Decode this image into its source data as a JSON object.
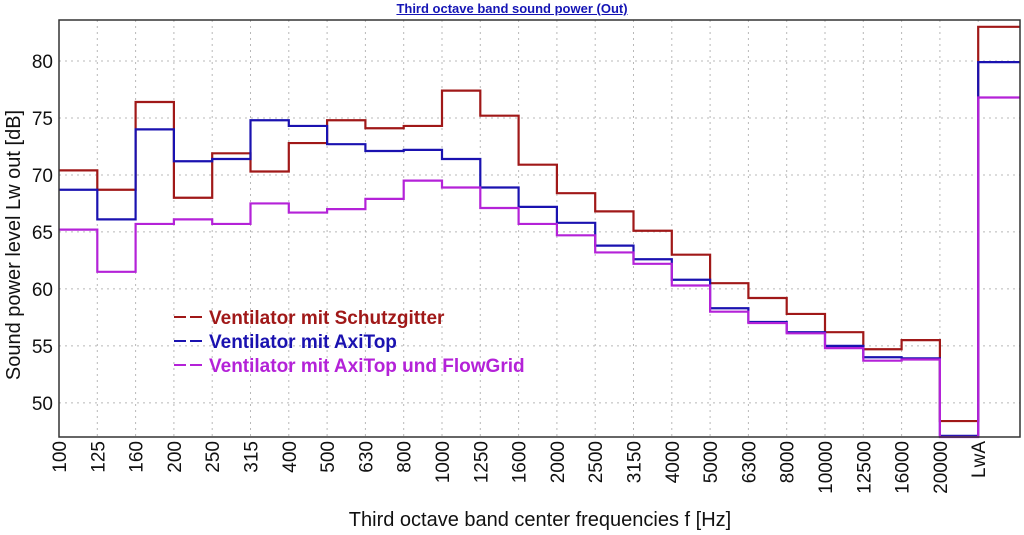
{
  "chart_data": {
    "type": "line",
    "style": "step",
    "title": "Third octave band sound power (Out)",
    "xlabel": "Third octave band center frequencies f [Hz]",
    "ylabel": "Sound power level Lw out [dB]",
    "ylim": [
      47,
      83.6
    ],
    "yticks": [
      50,
      55,
      60,
      65,
      70,
      75,
      80
    ],
    "grid": true,
    "legend_position": "center-left",
    "categories": [
      "100",
      "125",
      "160",
      "200",
      "250",
      "315",
      "400",
      "500",
      "630",
      "800",
      "1000",
      "1250",
      "1600",
      "2000",
      "2500",
      "3150",
      "4000",
      "5000",
      "6300",
      "8000",
      "10000",
      "12500",
      "16000",
      "20000",
      "LwA"
    ],
    "series": [
      {
        "name": "Ventilator mit Schutzgitter",
        "color": "#a01818",
        "values": [
          70.4,
          68.7,
          76.4,
          68.0,
          71.9,
          70.3,
          72.8,
          74.8,
          74.1,
          74.3,
          77.4,
          75.2,
          70.9,
          68.4,
          66.8,
          65.1,
          63.0,
          60.5,
          59.2,
          57.8,
          56.2,
          54.7,
          55.5,
          48.4,
          83.0
        ]
      },
      {
        "name": "Ventilator mit AxiTop",
        "color": "#1a12b0",
        "values": [
          68.7,
          66.1,
          74.0,
          71.2,
          71.4,
          74.8,
          74.3,
          72.7,
          72.1,
          72.2,
          71.4,
          68.9,
          67.2,
          65.8,
          63.8,
          62.6,
          60.8,
          58.3,
          57.1,
          56.2,
          55.0,
          54.0,
          53.9,
          47.1,
          79.9
        ]
      },
      {
        "name": "Ventilator mit AxiTop und FlowGrid",
        "color": "#b422d8",
        "values": [
          65.2,
          61.5,
          65.7,
          66.1,
          65.7,
          67.5,
          66.7,
          67.0,
          67.9,
          69.5,
          68.9,
          67.1,
          65.7,
          64.7,
          63.2,
          62.2,
          60.3,
          58.0,
          57.0,
          56.1,
          54.8,
          53.7,
          53.8,
          47.0,
          76.8
        ]
      }
    ]
  }
}
